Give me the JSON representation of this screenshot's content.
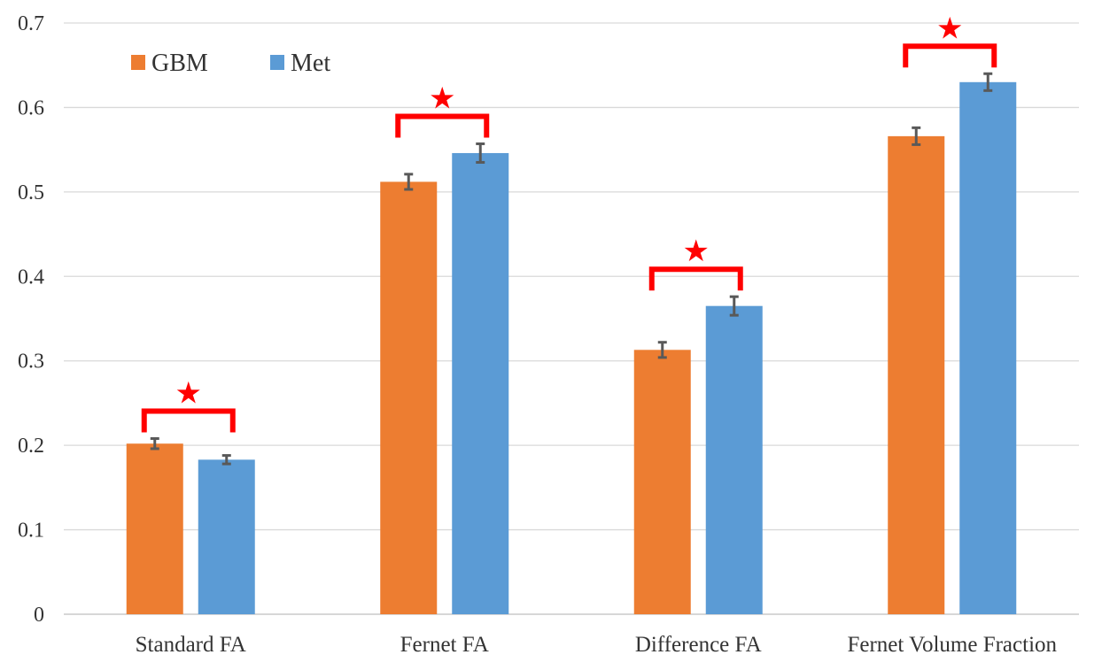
{
  "chart_data": {
    "type": "bar",
    "categories": [
      "Standard FA",
      "Fernet FA",
      "Difference FA",
      "Fernet Volume Fraction"
    ],
    "series": [
      {
        "name": "GBM",
        "color": "#ED7D31",
        "values": [
          0.202,
          0.512,
          0.313,
          0.566
        ],
        "errors": [
          0.006,
          0.009,
          0.009,
          0.01
        ]
      },
      {
        "name": "Met",
        "color": "#5B9BD5",
        "values": [
          0.183,
          0.546,
          0.365,
          0.63
        ],
        "errors": [
          0.005,
          0.011,
          0.011,
          0.01
        ]
      }
    ],
    "significance": [
      {
        "category": "Standard FA",
        "marker": "★"
      },
      {
        "category": "Fernet FA",
        "marker": "★"
      },
      {
        "category": "Difference FA",
        "marker": "★"
      },
      {
        "category": "Fernet Volume Fraction",
        "marker": "★"
      }
    ],
    "significance_color": "#FF0000",
    "ylim": [
      0,
      0.7
    ],
    "yticks": [
      "0",
      "0.1",
      "0.2",
      "0.3",
      "0.4",
      "0.5",
      "0.6",
      "0.7"
    ],
    "title": "",
    "xlabel": "",
    "ylabel": "",
    "grid": true,
    "legend_position": "top-left"
  }
}
